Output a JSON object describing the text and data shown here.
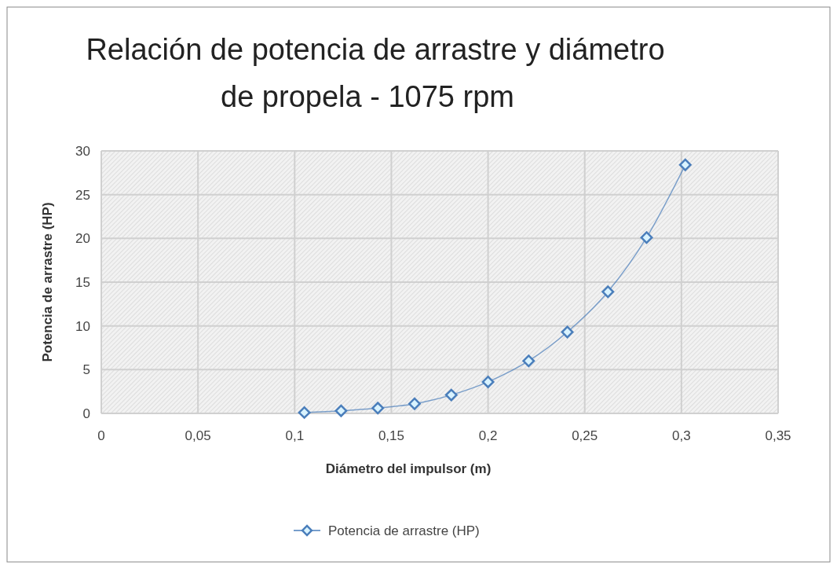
{
  "chart_data": {
    "type": "line",
    "title": "Relación de potencia de arrastre y diámetro\nde propela - 1075 rpm",
    "xlabel": "Diámetro del impulsor (m)",
    "ylabel": "Potencia de arrastre (HP)",
    "x": [
      0.105,
      0.124,
      0.143,
      0.162,
      0.181,
      0.2,
      0.221,
      0.241,
      0.262,
      0.282,
      0.302
    ],
    "series": [
      {
        "name": "Potencia de arrastre (HP)",
        "color": "#4a7ebb",
        "values": [
          0.1,
          0.3,
          0.6,
          1.1,
          2.1,
          3.6,
          6.0,
          9.3,
          13.9,
          20.1,
          28.4
        ]
      }
    ],
    "xlim": [
      0,
      0.35
    ],
    "xticks": [
      0,
      {
        "value": 0.05,
        "label": "0,05"
      },
      {
        "value": 0.1,
        "label": "0,1"
      },
      {
        "value": 0.15,
        "label": "0,15"
      },
      {
        "value": 0.2,
        "label": "0,2"
      },
      {
        "value": 0.25,
        "label": "0,25"
      },
      {
        "value": 0.3,
        "label": "0,3"
      },
      {
        "value": 0.35,
        "label": "0,35"
      }
    ],
    "ylim": [
      0,
      30
    ],
    "yticks": [
      0,
      5,
      10,
      15,
      20,
      25,
      30
    ],
    "grid": true,
    "legend": "bottom",
    "marker": "diamond",
    "line_style": "solid"
  }
}
